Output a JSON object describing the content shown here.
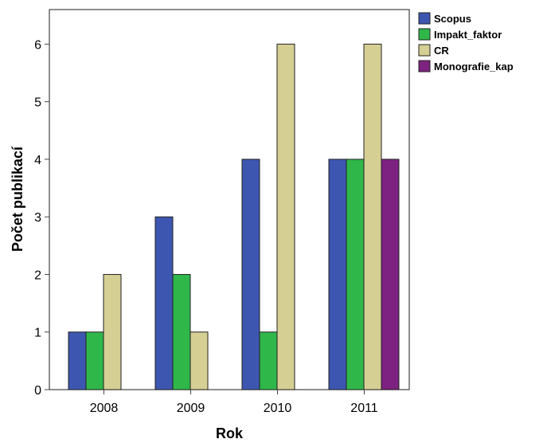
{
  "chart_data": {
    "type": "bar",
    "xlabel": "Rok",
    "ylabel": "Počet publikací",
    "categories": [
      "2008",
      "2009",
      "2010",
      "2011"
    ],
    "ylim": [
      0,
      6.6
    ],
    "yticks": [
      0,
      1,
      2,
      3,
      4,
      5,
      6
    ],
    "grid": false,
    "legend_position": "top-right",
    "series": [
      {
        "name": "Scopus",
        "color": "#3d56b0",
        "values": [
          1,
          3,
          4,
          4
        ]
      },
      {
        "name": "Impakt_faktor",
        "color": "#2fb74a",
        "values": [
          1,
          2,
          1,
          4
        ]
      },
      {
        "name": "CR",
        "color": "#d6cf94",
        "values": [
          2,
          1,
          6,
          6
        ]
      },
      {
        "name": "Monografie_kap",
        "color": "#7d2280",
        "values": [
          0,
          0,
          0,
          4
        ]
      }
    ]
  }
}
